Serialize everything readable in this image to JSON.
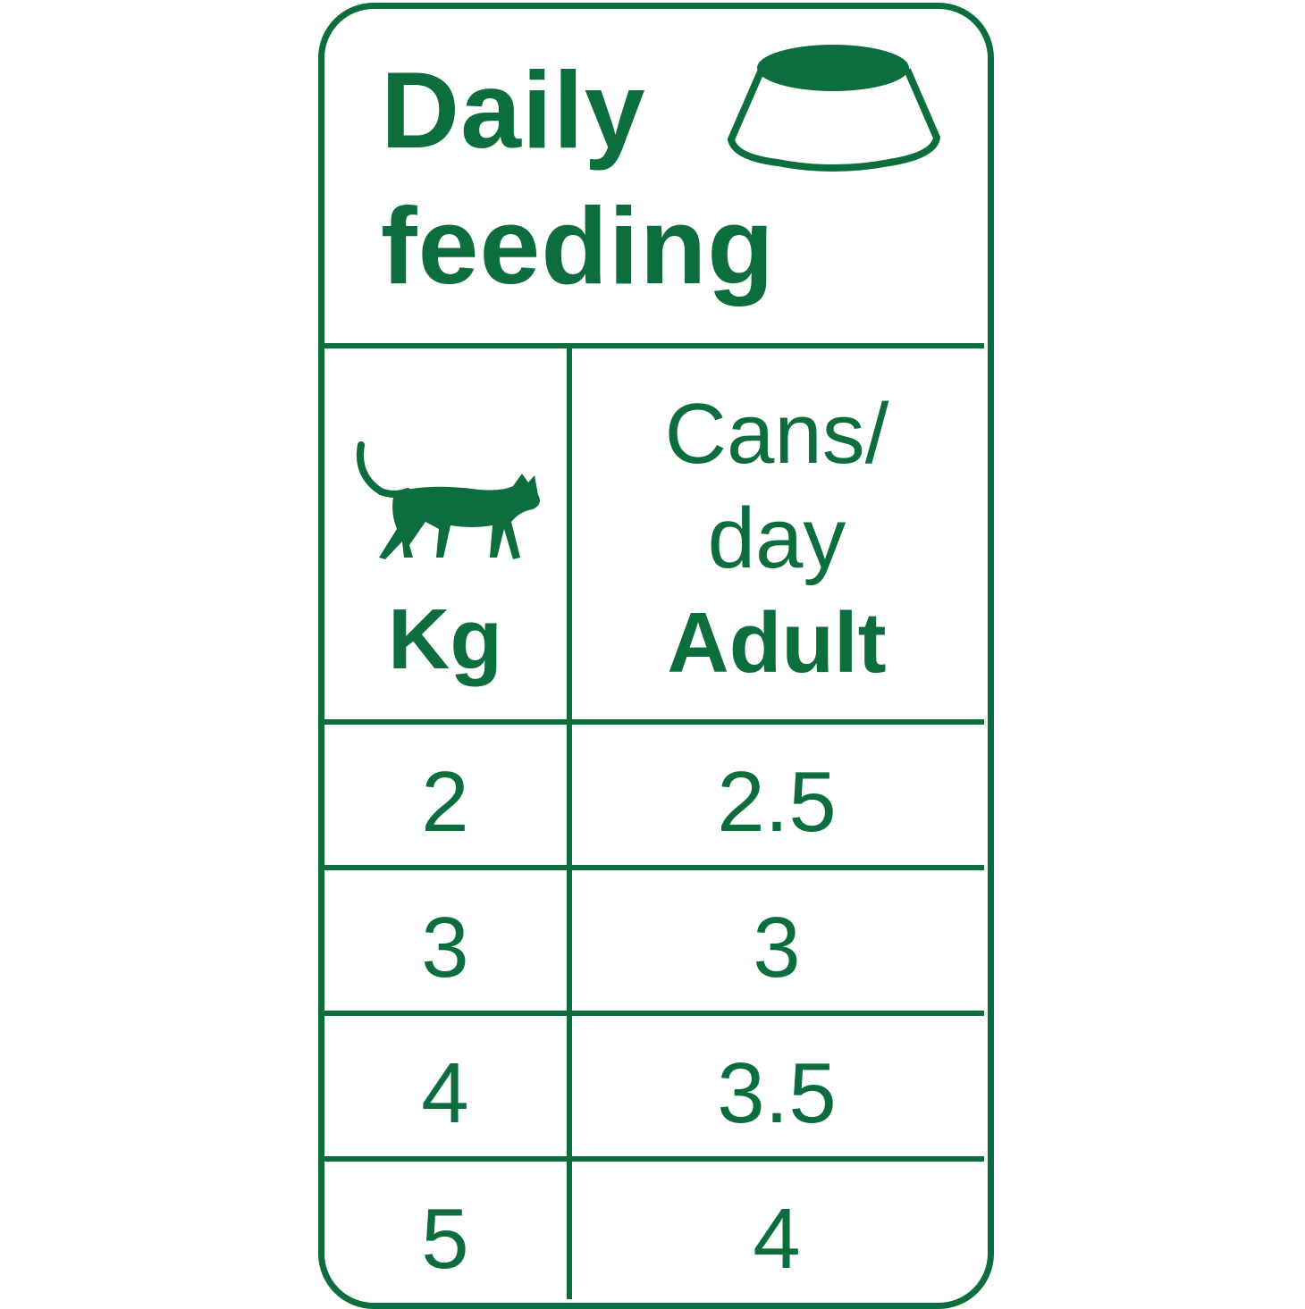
{
  "colors": {
    "brand_green": "#0b6e3c"
  },
  "header": {
    "title_line1": "Daily",
    "title_line2": "feeding",
    "icon": "food-bowl-icon"
  },
  "columns": {
    "weight": {
      "icon": "cat-icon",
      "label": "Kg"
    },
    "cans": {
      "line1": "Cans/",
      "line2": "day",
      "line3": "Adult"
    }
  },
  "rows": [
    {
      "kg": "2",
      "cans": "2.5"
    },
    {
      "kg": "3",
      "cans": "3"
    },
    {
      "kg": "4",
      "cans": "3.5"
    },
    {
      "kg": "5",
      "cans": "4"
    }
  ]
}
